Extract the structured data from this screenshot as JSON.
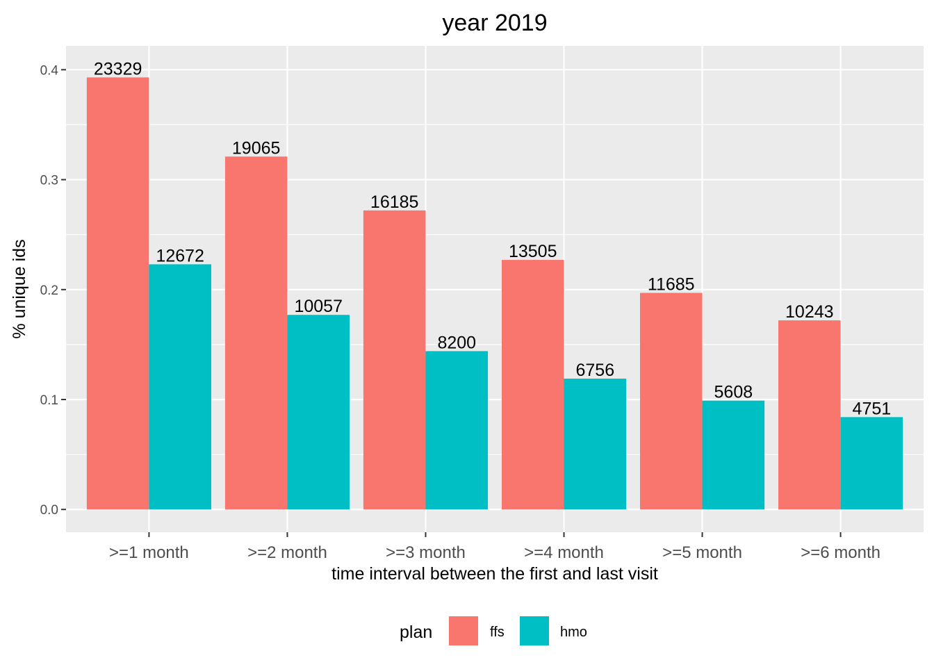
{
  "chart_data": {
    "type": "bar",
    "title": "year 2019",
    "xlabel": "time interval between the first and last visit",
    "ylabel": "% unique ids",
    "categories": [
      ">=1 month",
      ">=2 month",
      ">=3 month",
      ">=4 month",
      ">=5 month",
      ">=6 month"
    ],
    "series": [
      {
        "name": "ffs",
        "color": "#F8766D",
        "values": [
          0.393,
          0.321,
          0.272,
          0.227,
          0.197,
          0.172
        ],
        "labels": [
          "23329",
          "19065",
          "16185",
          "13505",
          "11685",
          "10243"
        ]
      },
      {
        "name": "hmo",
        "color": "#00BFC4",
        "values": [
          0.223,
          0.177,
          0.144,
          0.119,
          0.099,
          0.084
        ],
        "labels": [
          "12672",
          "10057",
          "8200",
          "6756",
          "5608",
          "4751"
        ]
      }
    ],
    "ylim": [
      -0.0207,
      0.4217
    ],
    "yticks": [
      0.0,
      0.1,
      0.2,
      0.3,
      0.4
    ],
    "ytick_labels": [
      "0.0",
      "0.1",
      "0.2",
      "0.3",
      "0.4"
    ],
    "grid": true,
    "legend": {
      "title": "plan",
      "position": "bottom",
      "entries": [
        "ffs",
        "hmo"
      ]
    },
    "panel_color": "#EBEBEB",
    "grid_color": "#FFFFFF"
  }
}
